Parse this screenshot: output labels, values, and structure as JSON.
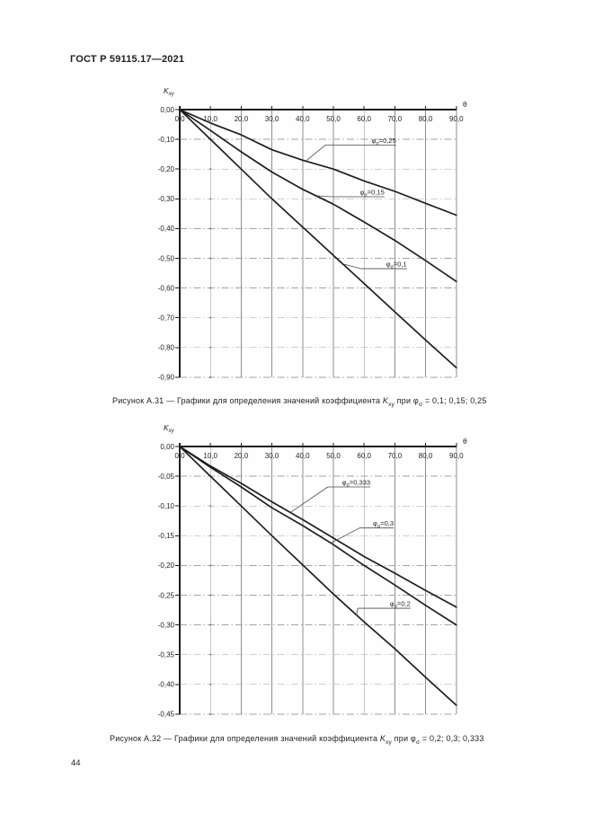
{
  "page": {
    "header": "ГОСТ Р 59115.17—2021",
    "page_number": "44"
  },
  "figures": [
    {
      "caption": "Рисунок А.31 — Графики для определения значений коэффициента *K*_(xy) при φ_(σ) = 0,1; 0,15; 0,25"
    },
    {
      "caption": "Рисунок А.32 — Графики для определения значений коэффициента *K*_(xy) при φ_(σ) = 0,2; 0,3; 0,333"
    }
  ],
  "chart_data": [
    {
      "type": "line",
      "figure": "Рисунок А.31",
      "title": "",
      "ylabel": "K_(xy)",
      "xlabel": "θ",
      "xlim": [
        0,
        90
      ],
      "ylim": [
        -0.9,
        0
      ],
      "grid": true,
      "legend_position": "inline-callouts",
      "x_ticks": [
        0,
        10,
        20,
        30,
        40,
        50,
        60,
        70,
        80,
        90
      ],
      "x_tick_labels": [
        "0,0",
        "10,0",
        "20,0",
        "30,0",
        "40,0",
        "50,0",
        "60,0",
        "70,0",
        "80,0",
        "90,0"
      ],
      "y_ticks": [
        0,
        -0.1,
        -0.2,
        -0.3,
        -0.4,
        -0.5,
        -0.6,
        -0.7,
        -0.8,
        -0.9
      ],
      "y_tick_labels": [
        "0,00",
        "-0,10",
        "-0,20",
        "-0,30",
        "-0,40",
        "-0,50",
        "-0,60",
        "-0,70",
        "-0,80",
        "-0,90"
      ],
      "x": [
        0,
        10,
        20,
        30,
        40,
        50,
        60,
        70,
        80,
        90
      ],
      "series": [
        {
          "name": "phi-sigma-0.25",
          "label": "φ_(σ)=0,25",
          "values": [
            0,
            -0.045,
            -0.085,
            -0.135,
            -0.17,
            -0.2,
            -0.24,
            -0.275,
            -0.315,
            -0.355
          ]
        },
        {
          "name": "phi-sigma-0.15",
          "label": "φ_(σ)=0,15",
          "values": [
            0,
            -0.07,
            -0.142,
            -0.21,
            -0.268,
            -0.318,
            -0.378,
            -0.44,
            -0.508,
            -0.578
          ]
        },
        {
          "name": "phi-sigma-0.1",
          "label": "φ_(σ)=0,1",
          "values": [
            0,
            -0.1,
            -0.2,
            -0.3,
            -0.395,
            -0.49,
            -0.585,
            -0.68,
            -0.775,
            -0.868
          ]
        }
      ],
      "annotations": [
        {
          "text": "φ_(σ)=0,25",
          "shelf_x1": 47.4,
          "shelf_x2": 70.4,
          "shelf_y": -0.119,
          "target_x": 41.0,
          "target_y": -0.173
        },
        {
          "text": "φ_(σ)=0,15",
          "shelf_x1": 49.4,
          "shelf_x2": 66.6,
          "shelf_y": -0.293,
          "target_x": 45.0,
          "target_y": -0.29
        },
        {
          "text": "φ_(σ)=0,1",
          "shelf_x1": 59.0,
          "shelf_x2": 73.9,
          "shelf_y": -0.535,
          "target_x": 53.5,
          "target_y": -0.52
        }
      ]
    },
    {
      "type": "line",
      "figure": "Рисунок А.32",
      "title": "",
      "ylabel": "K_(xy)",
      "xlabel": "θ",
      "xlim": [
        0,
        90
      ],
      "ylim": [
        -0.45,
        0
      ],
      "grid": true,
      "legend_position": "inline-callouts",
      "x_ticks": [
        0,
        10,
        20,
        30,
        40,
        50,
        60,
        70,
        80,
        90
      ],
      "x_tick_labels": [
        "0,0",
        "10,0",
        "20,0",
        "30,0",
        "40,0",
        "50,0",
        "60,0",
        "70,0",
        "80,0",
        "90,0"
      ],
      "y_ticks": [
        0,
        -0.05,
        -0.1,
        -0.15,
        -0.2,
        -0.25,
        -0.3,
        -0.35,
        -0.4,
        -0.45
      ],
      "y_tick_labels": [
        "0,00",
        "-0,05",
        "-0,10",
        "-0,15",
        "-0,20",
        "-0,25",
        "-0,30",
        "-0,35",
        "-0,40",
        "-0,45"
      ],
      "x": [
        0,
        10,
        20,
        30,
        40,
        50,
        60,
        70,
        80,
        90
      ],
      "series": [
        {
          "name": "phi-sigma-0.333",
          "label": "φ_(σ)=0,333",
          "values": [
            0,
            -0.033,
            -0.062,
            -0.093,
            -0.123,
            -0.154,
            -0.185,
            -0.213,
            -0.242,
            -0.27
          ]
        },
        {
          "name": "phi-sigma-0.3",
          "label": "φ_(σ)=0,3",
          "values": [
            0,
            -0.035,
            -0.068,
            -0.103,
            -0.133,
            -0.165,
            -0.2,
            -0.233,
            -0.267,
            -0.3
          ]
        },
        {
          "name": "phi-sigma-0.2",
          "label": "φ_(σ)=0,2",
          "values": [
            0,
            -0.05,
            -0.1,
            -0.15,
            -0.199,
            -0.248,
            -0.295,
            -0.34,
            -0.388,
            -0.435
          ]
        }
      ],
      "annotations": [
        {
          "text": "φ_(σ)=0,333",
          "shelf_x1": 48.2,
          "shelf_x2": 62.0,
          "shelf_y": -0.068,
          "target_x": 36.0,
          "target_y": -0.111
        },
        {
          "text": "φ_(σ)=0,3",
          "shelf_x1": 58.5,
          "shelf_x2": 69.6,
          "shelf_y": -0.137,
          "target_x": 49.0,
          "target_y": -0.163
        },
        {
          "text": "φ_(σ)=0,2",
          "shelf_x1": 57.9,
          "shelf_x2": 75.1,
          "shelf_y": -0.272,
          "target_x": 57.5,
          "target_y": -0.285
        }
      ]
    }
  ]
}
